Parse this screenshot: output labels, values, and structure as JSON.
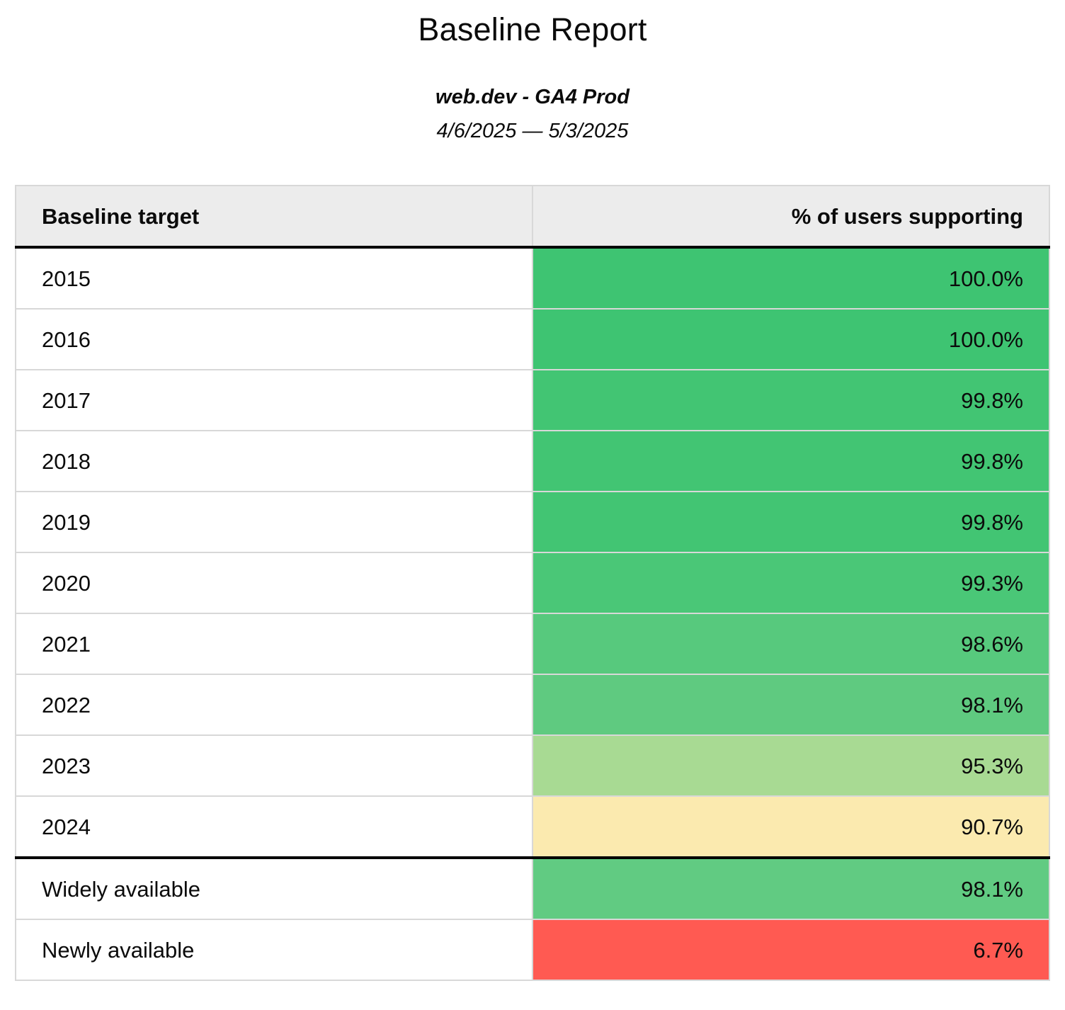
{
  "header": {
    "title": "Baseline Report",
    "subtitle": "web.dev - GA4 Prod",
    "date_range": "4/6/2025 — 5/3/2025"
  },
  "table": {
    "columns": [
      {
        "label": "Baseline target"
      },
      {
        "label": "% of users supporting"
      }
    ],
    "year_rows": [
      {
        "target": "2015",
        "value": "100.0%",
        "color": "#3ec472"
      },
      {
        "target": "2016",
        "value": "100.0%",
        "color": "#3ec472"
      },
      {
        "target": "2017",
        "value": "99.8%",
        "color": "#42c573"
      },
      {
        "target": "2018",
        "value": "99.8%",
        "color": "#42c573"
      },
      {
        "target": "2019",
        "value": "99.8%",
        "color": "#42c573"
      },
      {
        "target": "2020",
        "value": "99.3%",
        "color": "#4ac777"
      },
      {
        "target": "2021",
        "value": "98.6%",
        "color": "#57c97d"
      },
      {
        "target": "2022",
        "value": "98.1%",
        "color": "#5fca80"
      },
      {
        "target": "2023",
        "value": "95.3%",
        "color": "#a8da93"
      },
      {
        "target": "2024",
        "value": "90.7%",
        "color": "#fbeaaf"
      }
    ],
    "availability_rows": [
      {
        "target": "Widely available",
        "value": "98.1%",
        "color": "#61cb82"
      },
      {
        "target": "Newly available",
        "value": "6.7%",
        "color": "#ff5a52"
      }
    ]
  },
  "colors": {
    "header_background": "#ececec",
    "grid_line": "#d8d8d8",
    "section_divider": "#000000",
    "scale_green_full": "#3ec472",
    "scale_green_light": "#a8da93",
    "scale_yellow": "#fbeaaf",
    "scale_red": "#ff5a52"
  },
  "chart_data": {
    "type": "table",
    "title": "Baseline Report",
    "subtitle": "web.dev - GA4 Prod",
    "date_range": "4/6/2025 — 5/3/2025",
    "categories": [
      "2015",
      "2016",
      "2017",
      "2018",
      "2019",
      "2020",
      "2021",
      "2022",
      "2023",
      "2024",
      "Widely available",
      "Newly available"
    ],
    "values": [
      100.0,
      100.0,
      99.8,
      99.8,
      99.8,
      99.3,
      98.6,
      98.1,
      95.3,
      90.7,
      98.1,
      6.7
    ],
    "value_unit": "%",
    "xlabel": "Baseline target",
    "ylabel": "% of users supporting"
  }
}
